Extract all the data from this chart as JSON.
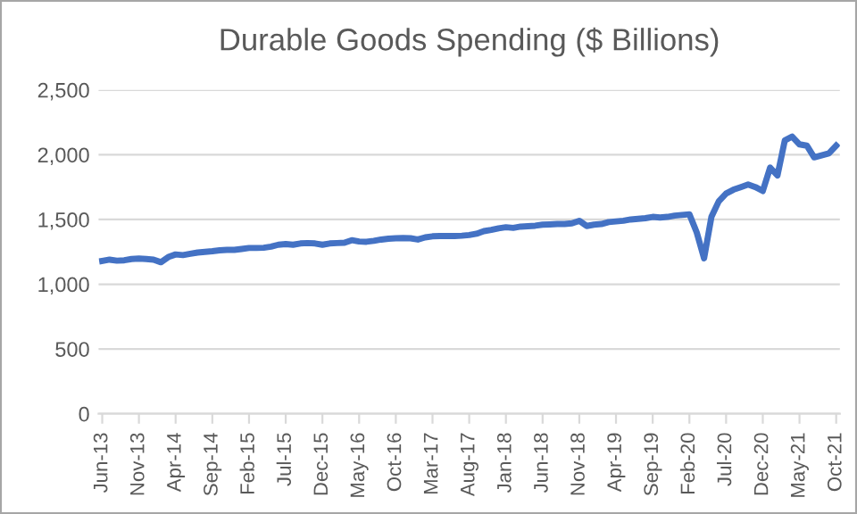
{
  "chart_data": {
    "type": "line",
    "title": "Durable Goods Spending ($ Billions)",
    "categories": [
      "Jun-13",
      null,
      null,
      null,
      null,
      "Nov-13",
      null,
      null,
      null,
      null,
      "Apr-14",
      null,
      null,
      null,
      null,
      "Sep-14",
      null,
      null,
      null,
      null,
      "Feb-15",
      null,
      null,
      null,
      null,
      "Jul-15",
      null,
      null,
      null,
      null,
      "Dec-15",
      null,
      null,
      null,
      null,
      "May-16",
      null,
      null,
      null,
      null,
      "Oct-16",
      null,
      null,
      null,
      null,
      "Mar-17",
      null,
      null,
      null,
      null,
      "Aug-17",
      null,
      null,
      null,
      null,
      "Jan-18",
      null,
      null,
      null,
      null,
      "Jun-18",
      null,
      null,
      null,
      null,
      "Nov-18",
      null,
      null,
      null,
      null,
      "Apr-19",
      null,
      null,
      null,
      null,
      "Sep-19",
      null,
      null,
      null,
      null,
      "Feb-20",
      null,
      null,
      null,
      null,
      "Jul-20",
      null,
      null,
      null,
      null,
      "Dec-20",
      null,
      null,
      null,
      null,
      "May-21",
      null,
      null,
      null,
      null,
      "Oct-21"
    ],
    "series": [
      {
        "color": "#4472c4",
        "values": [
          1180,
          1190,
          1182,
          1185,
          1195,
          1198,
          1195,
          1190,
          1170,
          1210,
          1230,
          1225,
          1235,
          1245,
          1250,
          1255,
          1262,
          1265,
          1265,
          1272,
          1280,
          1280,
          1282,
          1290,
          1305,
          1310,
          1305,
          1315,
          1318,
          1315,
          1305,
          1315,
          1318,
          1320,
          1340,
          1330,
          1328,
          1335,
          1345,
          1352,
          1355,
          1357,
          1355,
          1345,
          1362,
          1370,
          1372,
          1372,
          1372,
          1375,
          1380,
          1390,
          1410,
          1420,
          1432,
          1440,
          1435,
          1445,
          1448,
          1452,
          1460,
          1462,
          1465,
          1465,
          1470,
          1490,
          1450,
          1460,
          1465,
          1480,
          1485,
          1490,
          1500,
          1505,
          1510,
          1520,
          1515,
          1520,
          1530,
          1535,
          1540,
          1400,
          1200,
          1520,
          1640,
          1700,
          1730,
          1750,
          1770,
          1750,
          1720,
          1900,
          1840,
          2110,
          2140,
          2080,
          2070,
          1980,
          1995,
          2010,
          2070
        ]
      }
    ],
    "ylim": [
      0,
      2500
    ],
    "yticks": [
      0,
      500,
      {
        "value": 1000,
        "label": "1,000"
      },
      {
        "value": 1500,
        "label": "1,500"
      },
      {
        "value": 2000,
        "label": "2,000"
      },
      {
        "value": 2500,
        "label": "2,500"
      }
    ],
    "grid": "y",
    "legend": false,
    "marker": "none",
    "line_style": "solid"
  }
}
